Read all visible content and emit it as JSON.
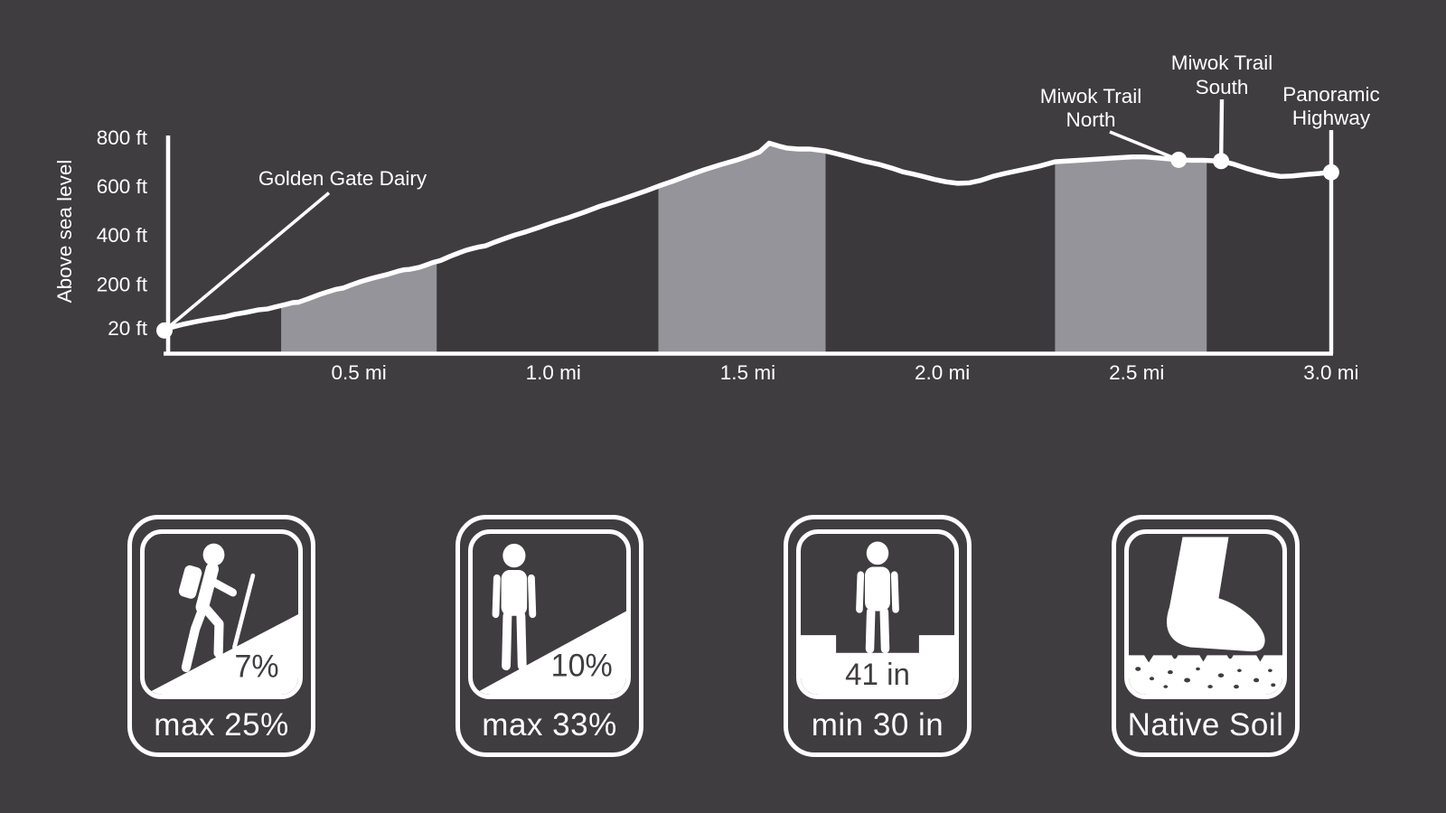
{
  "chart_data": {
    "type": "area",
    "title": "",
    "ylabel": "Above sea level",
    "xlabel": "",
    "x_unit": "mi",
    "y_unit": "ft",
    "xlim_mi": [
      0,
      3
    ],
    "ylim_ft": [
      0,
      800
    ],
    "grid": false,
    "legend": false,
    "y_ticks": [
      {
        "ft": 800,
        "label": "800 ft"
      },
      {
        "ft": 600,
        "label": "600 ft"
      },
      {
        "ft": 400,
        "label": "400 ft"
      },
      {
        "ft": 200,
        "label": "200 ft"
      },
      {
        "ft": 20,
        "label": "20 ft"
      }
    ],
    "x_ticks": [
      {
        "mile": 0.5,
        "label": "0.5 mi"
      },
      {
        "mile": 1.0,
        "label": "1.0 mi"
      },
      {
        "mile": 1.5,
        "label": "1.5 mi"
      },
      {
        "mile": 2.0,
        "label": "2.0 mi"
      },
      {
        "mile": 2.5,
        "label": "2.5 mi"
      },
      {
        "mile": 3.0,
        "label": "3.0 mi"
      }
    ],
    "profile_mi_ft": [
      [
        0.0,
        10
      ],
      [
        0.02,
        24
      ],
      [
        0.05,
        36
      ],
      [
        0.08,
        46
      ],
      [
        0.1,
        52
      ],
      [
        0.13,
        60
      ],
      [
        0.155,
        66
      ],
      [
        0.18,
        76
      ],
      [
        0.21,
        84
      ],
      [
        0.24,
        94
      ],
      [
        0.265,
        98
      ],
      [
        0.29,
        108
      ],
      [
        0.31,
        116
      ],
      [
        0.33,
        124
      ],
      [
        0.345,
        126
      ],
      [
        0.37,
        140
      ],
      [
        0.4,
        158
      ],
      [
        0.42,
        168
      ],
      [
        0.44,
        178
      ],
      [
        0.46,
        184
      ],
      [
        0.48,
        196
      ],
      [
        0.505,
        210
      ],
      [
        0.53,
        222
      ],
      [
        0.55,
        230
      ],
      [
        0.575,
        240
      ],
      [
        0.6,
        252
      ],
      [
        0.615,
        258
      ],
      [
        0.63,
        260
      ],
      [
        0.655,
        268
      ],
      [
        0.67,
        276
      ],
      [
        0.69,
        288
      ],
      [
        0.71,
        296
      ],
      [
        0.735,
        314
      ],
      [
        0.755,
        326
      ],
      [
        0.775,
        338
      ],
      [
        0.79,
        344
      ],
      [
        0.81,
        352
      ],
      [
        0.825,
        356
      ],
      [
        0.85,
        372
      ],
      [
        0.875,
        386
      ],
      [
        0.9,
        400
      ],
      [
        0.93,
        414
      ],
      [
        0.96,
        430
      ],
      [
        1.0,
        452
      ],
      [
        1.04,
        472
      ],
      [
        1.08,
        494
      ],
      [
        1.12,
        518
      ],
      [
        1.16,
        538
      ],
      [
        1.2,
        560
      ],
      [
        1.24,
        582
      ],
      [
        1.27,
        600
      ],
      [
        1.31,
        622
      ],
      [
        1.35,
        646
      ],
      [
        1.39,
        668
      ],
      [
        1.43,
        688
      ],
      [
        1.47,
        706
      ],
      [
        1.5,
        722
      ],
      [
        1.53,
        740
      ],
      [
        1.555,
        776
      ],
      [
        1.58,
        764
      ],
      [
        1.6,
        756
      ],
      [
        1.63,
        752
      ],
      [
        1.66,
        752
      ],
      [
        1.68,
        748
      ],
      [
        1.7,
        744
      ],
      [
        1.73,
        732
      ],
      [
        1.76,
        720
      ],
      [
        1.8,
        702
      ],
      [
        1.84,
        688
      ],
      [
        1.87,
        674
      ],
      [
        1.9,
        658
      ],
      [
        1.925,
        650
      ],
      [
        1.95,
        640
      ],
      [
        1.98,
        628
      ],
      [
        2.01,
        618
      ],
      [
        2.04,
        612
      ],
      [
        2.07,
        614
      ],
      [
        2.1,
        624
      ],
      [
        2.13,
        640
      ],
      [
        2.16,
        652
      ],
      [
        2.19,
        662
      ],
      [
        2.22,
        672
      ],
      [
        2.25,
        682
      ],
      [
        2.29,
        700
      ],
      [
        2.33,
        704
      ],
      [
        2.37,
        708
      ],
      [
        2.41,
        712
      ],
      [
        2.45,
        716
      ],
      [
        2.49,
        720
      ],
      [
        2.52,
        720
      ],
      [
        2.55,
        716
      ],
      [
        2.58,
        712
      ],
      [
        2.61,
        708
      ],
      [
        2.64,
        706
      ],
      [
        2.67,
        706
      ],
      [
        2.7,
        704
      ],
      [
        2.72,
        702
      ],
      [
        2.75,
        690
      ],
      [
        2.78,
        674
      ],
      [
        2.81,
        660
      ],
      [
        2.84,
        648
      ],
      [
        2.87,
        640
      ],
      [
        2.9,
        642
      ],
      [
        2.94,
        648
      ],
      [
        2.97,
        652
      ],
      [
        3.0,
        658
      ]
    ],
    "accessible_segments_mi": [
      [
        0.3,
        0.7
      ],
      [
        1.27,
        1.7
      ],
      [
        2.29,
        2.68
      ]
    ],
    "annotations": [
      {
        "id": "golden_gate_dairy",
        "lines": [
          "Golden Gate Dairy"
        ],
        "mile": 0.0,
        "ft": 10
      },
      {
        "id": "miwok_trail_north",
        "lines": [
          "Miwok Trail",
          "North"
        ],
        "mile": 2.608,
        "ft": 708
      },
      {
        "id": "miwok_trail_south",
        "lines": [
          "Miwok Trail",
          "South"
        ],
        "mile": 2.717,
        "ft": 703
      },
      {
        "id": "panoramic_highway",
        "lines": [
          "Panoramic",
          "Highway"
        ],
        "mile": 3.0,
        "ft": 657
      }
    ],
    "colors": {
      "background": "#3F3D40",
      "under_curve_fill": "#3B393C",
      "accessible_segment_fill": "#95949A",
      "line": "#FFFFFF",
      "text": "#FFFFFF"
    }
  },
  "badges": [
    {
      "id": "running_slope",
      "icon": "hiker-on-slope-icon",
      "value": "7%",
      "label": "max 25%"
    },
    {
      "id": "cross_slope",
      "icon": "person-on-cross-slope-icon",
      "value": "10%",
      "label": "max 33%"
    },
    {
      "id": "tread_width",
      "icon": "person-in-tread-icon",
      "value": "41 in",
      "label": "min 30 in"
    },
    {
      "id": "surface",
      "icon": "boot-on-native-soil-icon",
      "value": "",
      "label": "Native Soil"
    }
  ]
}
